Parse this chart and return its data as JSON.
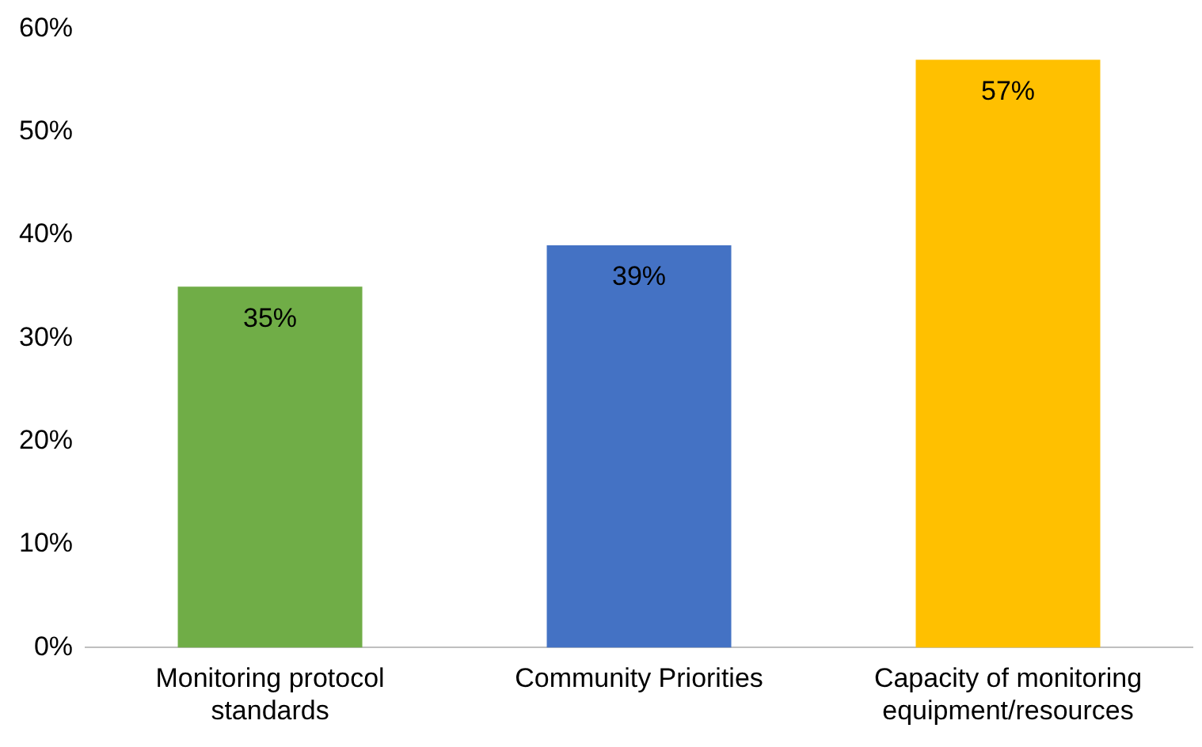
{
  "chart_data": {
    "type": "bar",
    "categories": [
      "Monitoring protocol standards",
      "Community Priorities",
      "Capacity of monitoring equipment/resources"
    ],
    "values": [
      35,
      39,
      57
    ],
    "colors": [
      "#70ad47",
      "#4472c4",
      "#ffc000"
    ],
    "value_labels": [
      "35%",
      "39%",
      "57%"
    ],
    "ylim": [
      0,
      60
    ],
    "yticks": [
      {
        "value": 0,
        "label": "0%"
      },
      {
        "value": 10,
        "label": "10%"
      },
      {
        "value": 20,
        "label": "20%"
      },
      {
        "value": 30,
        "label": "30%"
      },
      {
        "value": 40,
        "label": "40%"
      },
      {
        "value": 50,
        "label": "50%"
      },
      {
        "value": 60,
        "label": "60%"
      }
    ],
    "grid": false,
    "legend": false
  }
}
